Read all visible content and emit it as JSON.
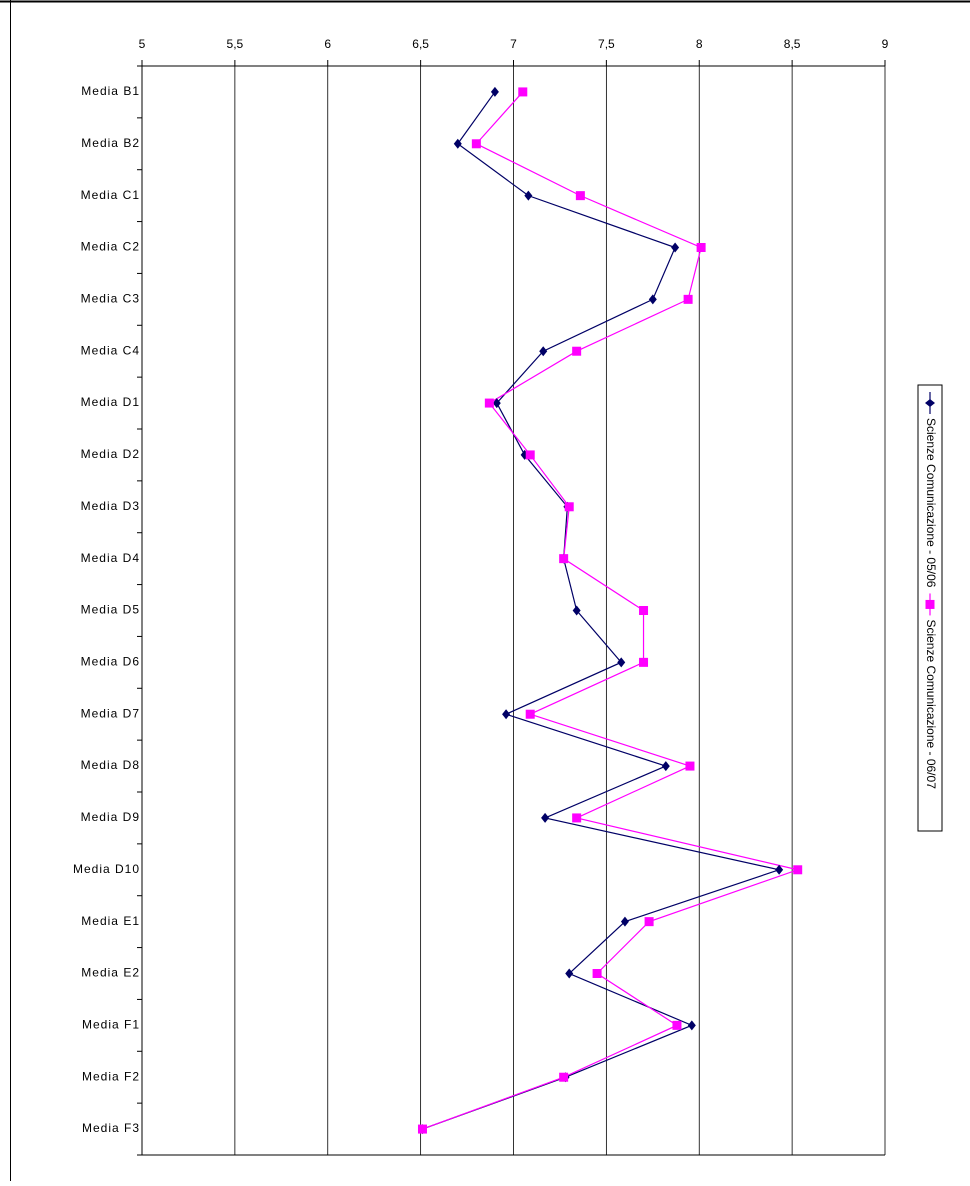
{
  "chart_data": {
    "type": "line",
    "orientation": "horizontal",
    "categories": [
      "Media B1",
      "Media B2",
      "Media C1",
      "Media C2",
      "Media C3",
      "Media C4",
      "Media D1",
      "Media D2",
      "Media D3",
      "Media D4",
      "Media D5",
      "Media D6",
      "Media D7",
      "Media D8",
      "Media D9",
      "Media D10",
      "Media E1",
      "Media E2",
      "Media F1",
      "Media F2",
      "Media F3"
    ],
    "series": [
      {
        "name": "Scienze Comunicazione - 05/06",
        "color": "#000066",
        "marker": "diamond",
        "values": [
          6.9,
          6.7,
          7.08,
          7.87,
          7.75,
          7.16,
          6.91,
          7.06,
          7.29,
          7.27,
          7.34,
          7.58,
          6.96,
          7.82,
          7.17,
          8.43,
          7.6,
          7.3,
          7.96,
          7.28,
          6.51
        ]
      },
      {
        "name": "Scienze Comunicazione - 06/07",
        "color": "#ff00ff",
        "marker": "square",
        "values": [
          7.05,
          6.8,
          7.36,
          8.01,
          7.94,
          7.34,
          6.87,
          7.09,
          7.3,
          7.27,
          7.7,
          7.7,
          7.09,
          7.95,
          7.34,
          8.53,
          7.73,
          7.45,
          7.88,
          7.27,
          6.51
        ]
      }
    ],
    "xlim": [
      5,
      9
    ],
    "xticks": [
      5,
      {
        "value": 5.5,
        "label": "5,5"
      },
      6,
      {
        "value": 6.5,
        "label": "6,5"
      },
      7,
      {
        "value": 7.5,
        "label": "7,5"
      },
      8,
      {
        "value": 8.5,
        "label": "8,5"
      },
      9
    ],
    "grid": true,
    "legend": "right"
  }
}
